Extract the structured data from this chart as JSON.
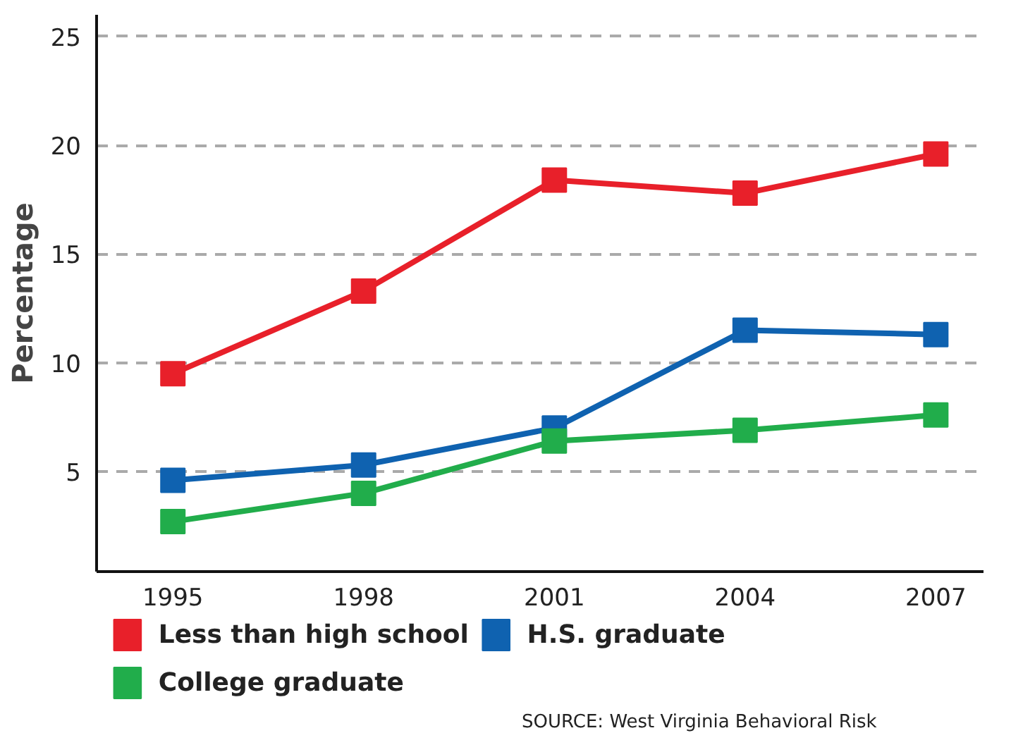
{
  "chart_data": {
    "type": "line",
    "ylabel": "Percentage",
    "categories": [
      "1995",
      "1998",
      "2001",
      "2004",
      "2007"
    ],
    "series": [
      {
        "name": "Less than high school",
        "color": "#e8202a",
        "values": [
          9.5,
          13.3,
          18.4,
          17.8,
          19.6
        ]
      },
      {
        "name": "H.S. graduate",
        "color": "#0f62b0",
        "values": [
          4.6,
          5.3,
          7.0,
          11.5,
          11.3
        ]
      },
      {
        "name": "College graduate",
        "color": "#21ad4b",
        "values": [
          2.7,
          4.0,
          6.4,
          6.9,
          7.6
        ]
      }
    ],
    "ylim": [
      0.4,
      26
    ],
    "yticks": [
      5,
      10,
      15,
      20,
      25
    ],
    "grid": "y",
    "legend": "bottom",
    "marker": "square",
    "line_style": "solid",
    "annotations": [
      "SOURCE: West Virginia Behavioral Risk"
    ]
  }
}
